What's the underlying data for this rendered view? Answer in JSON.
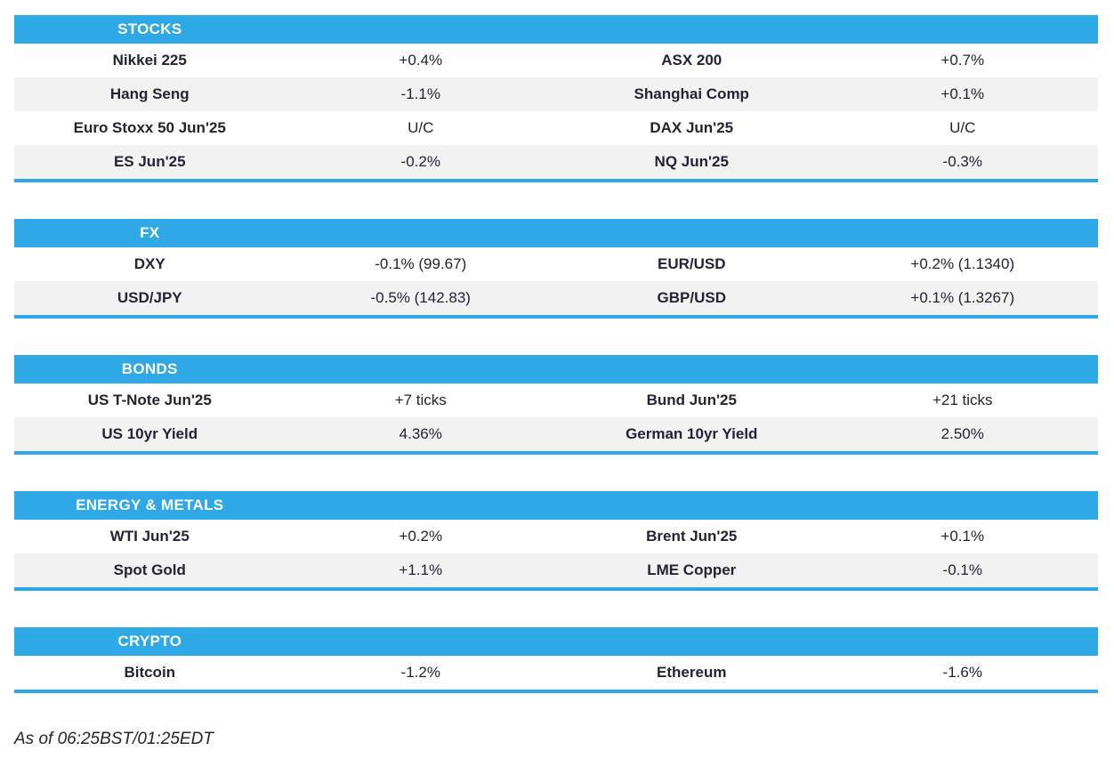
{
  "theme": {
    "accent_blue": "#2FA8E8",
    "stripe_gray": "#F2F2F2",
    "text_dark": "#232333",
    "header_text": "#FFFFFF"
  },
  "sections": [
    {
      "title": "STOCKS",
      "rows": [
        {
          "name_left": "Nikkei 225",
          "value_left": "+0.4%",
          "name_right": "ASX 200",
          "value_right": "+0.7%"
        },
        {
          "name_left": "Hang Seng",
          "value_left": "-1.1%",
          "name_right": "Shanghai Comp",
          "value_right": "+0.1%"
        },
        {
          "name_left": "Euro Stoxx 50 Jun'25",
          "value_left": "U/C",
          "name_right": "DAX Jun'25",
          "value_right": "U/C"
        },
        {
          "name_left": "ES Jun'25",
          "value_left": "-0.2%",
          "name_right": "NQ Jun'25",
          "value_right": "-0.3%"
        }
      ]
    },
    {
      "title": "FX",
      "rows": [
        {
          "name_left": "DXY",
          "value_left": "-0.1% (99.67)",
          "name_right": "EUR/USD",
          "value_right": "+0.2% (1.1340)"
        },
        {
          "name_left": "USD/JPY",
          "value_left": "-0.5% (142.83)",
          "name_right": "GBP/USD",
          "value_right": "+0.1% (1.3267)"
        }
      ]
    },
    {
      "title": "BONDS",
      "rows": [
        {
          "name_left": "US T-Note Jun'25",
          "value_left": "+7 ticks",
          "name_right": "Bund Jun'25",
          "value_right": "+21 ticks"
        },
        {
          "name_left": "US 10yr Yield",
          "value_left": "4.36%",
          "name_right": "German 10yr Yield",
          "value_right": "2.50%"
        }
      ]
    },
    {
      "title": "ENERGY & METALS",
      "rows": [
        {
          "name_left": "WTI Jun'25",
          "value_left": "+0.2%",
          "name_right": "Brent Jun'25",
          "value_right": "+0.1%"
        },
        {
          "name_left": "Spot Gold",
          "value_left": "+1.1%",
          "name_right": "LME Copper",
          "value_right": "-0.1%"
        }
      ]
    },
    {
      "title": "CRYPTO",
      "rows": [
        {
          "name_left": "Bitcoin",
          "value_left": "-1.2%",
          "name_right": "Ethereum",
          "value_right": "-1.6%"
        }
      ]
    }
  ],
  "footer": {
    "as_of": "As of 06:25BST/01:25EDT"
  }
}
